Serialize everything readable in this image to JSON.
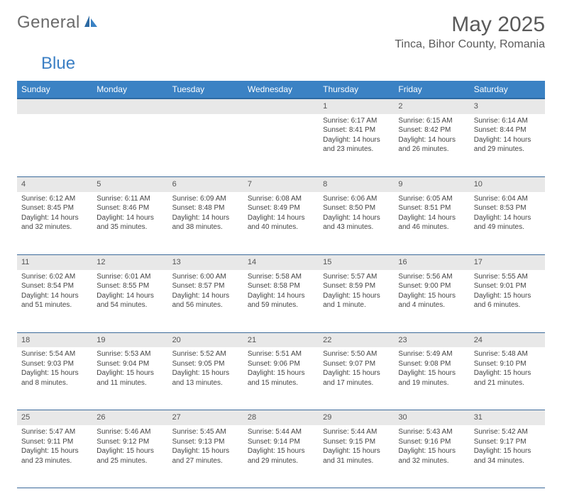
{
  "logo": {
    "text_gray": "General",
    "text_blue": "Blue"
  },
  "title": "May 2025",
  "location": "Tinca, Bihor County, Romania",
  "colors": {
    "header_bg": "#3b82c4",
    "header_text": "#ffffff",
    "daynum_bg": "#e8e8e8",
    "border": "#3b6a9a",
    "logo_gray": "#6a6a6a",
    "logo_blue": "#3b7fc4",
    "body_text": "#444444"
  },
  "weekdays": [
    "Sunday",
    "Monday",
    "Tuesday",
    "Wednesday",
    "Thursday",
    "Friday",
    "Saturday"
  ],
  "weeks": [
    [
      null,
      null,
      null,
      null,
      {
        "n": "1",
        "sr": "6:17 AM",
        "ss": "8:41 PM",
        "dl": "14 hours and 23 minutes."
      },
      {
        "n": "2",
        "sr": "6:15 AM",
        "ss": "8:42 PM",
        "dl": "14 hours and 26 minutes."
      },
      {
        "n": "3",
        "sr": "6:14 AM",
        "ss": "8:44 PM",
        "dl": "14 hours and 29 minutes."
      }
    ],
    [
      {
        "n": "4",
        "sr": "6:12 AM",
        "ss": "8:45 PM",
        "dl": "14 hours and 32 minutes."
      },
      {
        "n": "5",
        "sr": "6:11 AM",
        "ss": "8:46 PM",
        "dl": "14 hours and 35 minutes."
      },
      {
        "n": "6",
        "sr": "6:09 AM",
        "ss": "8:48 PM",
        "dl": "14 hours and 38 minutes."
      },
      {
        "n": "7",
        "sr": "6:08 AM",
        "ss": "8:49 PM",
        "dl": "14 hours and 40 minutes."
      },
      {
        "n": "8",
        "sr": "6:06 AM",
        "ss": "8:50 PM",
        "dl": "14 hours and 43 minutes."
      },
      {
        "n": "9",
        "sr": "6:05 AM",
        "ss": "8:51 PM",
        "dl": "14 hours and 46 minutes."
      },
      {
        "n": "10",
        "sr": "6:04 AM",
        "ss": "8:53 PM",
        "dl": "14 hours and 49 minutes."
      }
    ],
    [
      {
        "n": "11",
        "sr": "6:02 AM",
        "ss": "8:54 PM",
        "dl": "14 hours and 51 minutes."
      },
      {
        "n": "12",
        "sr": "6:01 AM",
        "ss": "8:55 PM",
        "dl": "14 hours and 54 minutes."
      },
      {
        "n": "13",
        "sr": "6:00 AM",
        "ss": "8:57 PM",
        "dl": "14 hours and 56 minutes."
      },
      {
        "n": "14",
        "sr": "5:58 AM",
        "ss": "8:58 PM",
        "dl": "14 hours and 59 minutes."
      },
      {
        "n": "15",
        "sr": "5:57 AM",
        "ss": "8:59 PM",
        "dl": "15 hours and 1 minute."
      },
      {
        "n": "16",
        "sr": "5:56 AM",
        "ss": "9:00 PM",
        "dl": "15 hours and 4 minutes."
      },
      {
        "n": "17",
        "sr": "5:55 AM",
        "ss": "9:01 PM",
        "dl": "15 hours and 6 minutes."
      }
    ],
    [
      {
        "n": "18",
        "sr": "5:54 AM",
        "ss": "9:03 PM",
        "dl": "15 hours and 8 minutes."
      },
      {
        "n": "19",
        "sr": "5:53 AM",
        "ss": "9:04 PM",
        "dl": "15 hours and 11 minutes."
      },
      {
        "n": "20",
        "sr": "5:52 AM",
        "ss": "9:05 PM",
        "dl": "15 hours and 13 minutes."
      },
      {
        "n": "21",
        "sr": "5:51 AM",
        "ss": "9:06 PM",
        "dl": "15 hours and 15 minutes."
      },
      {
        "n": "22",
        "sr": "5:50 AM",
        "ss": "9:07 PM",
        "dl": "15 hours and 17 minutes."
      },
      {
        "n": "23",
        "sr": "5:49 AM",
        "ss": "9:08 PM",
        "dl": "15 hours and 19 minutes."
      },
      {
        "n": "24",
        "sr": "5:48 AM",
        "ss": "9:10 PM",
        "dl": "15 hours and 21 minutes."
      }
    ],
    [
      {
        "n": "25",
        "sr": "5:47 AM",
        "ss": "9:11 PM",
        "dl": "15 hours and 23 minutes."
      },
      {
        "n": "26",
        "sr": "5:46 AM",
        "ss": "9:12 PM",
        "dl": "15 hours and 25 minutes."
      },
      {
        "n": "27",
        "sr": "5:45 AM",
        "ss": "9:13 PM",
        "dl": "15 hours and 27 minutes."
      },
      {
        "n": "28",
        "sr": "5:44 AM",
        "ss": "9:14 PM",
        "dl": "15 hours and 29 minutes."
      },
      {
        "n": "29",
        "sr": "5:44 AM",
        "ss": "9:15 PM",
        "dl": "15 hours and 31 minutes."
      },
      {
        "n": "30",
        "sr": "5:43 AM",
        "ss": "9:16 PM",
        "dl": "15 hours and 32 minutes."
      },
      {
        "n": "31",
        "sr": "5:42 AM",
        "ss": "9:17 PM",
        "dl": "15 hours and 34 minutes."
      }
    ]
  ],
  "labels": {
    "sunrise": "Sunrise:",
    "sunset": "Sunset:",
    "daylight": "Daylight:"
  }
}
